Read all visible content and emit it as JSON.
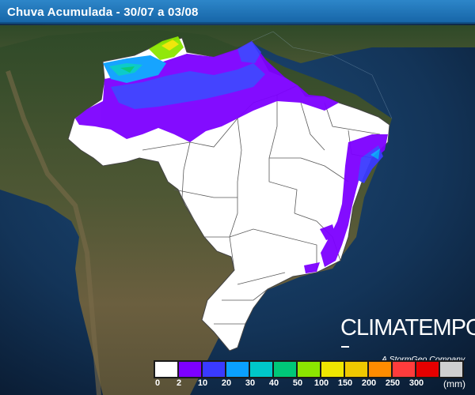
{
  "header": {
    "title": "Chuva Acumulada - 30/07 a 03/08"
  },
  "brand": {
    "logo": "CLIMATEMPO",
    "tagline": "A StormGeo Company"
  },
  "legend": {
    "unit": "(mm)",
    "labels": [
      "0",
      "2",
      "10",
      "20",
      "30",
      "40",
      "50",
      "100",
      "150",
      "200",
      "250",
      "300"
    ],
    "colors": [
      "#ffffff",
      "#7d00ff",
      "#3a3aff",
      "#0aa0ff",
      "#00c8c8",
      "#00c878",
      "#8ce600",
      "#f0e600",
      "#f0c800",
      "#ff8c00",
      "#ff3c3c",
      "#e60000",
      "#cfcfcf"
    ]
  },
  "colors": {
    "header": "#1f73b6",
    "ocean": "#0d2440",
    "land": "#5c5a3c",
    "forest": "#2f4a2a",
    "brazil": "#ffffff",
    "states": "#555555"
  }
}
